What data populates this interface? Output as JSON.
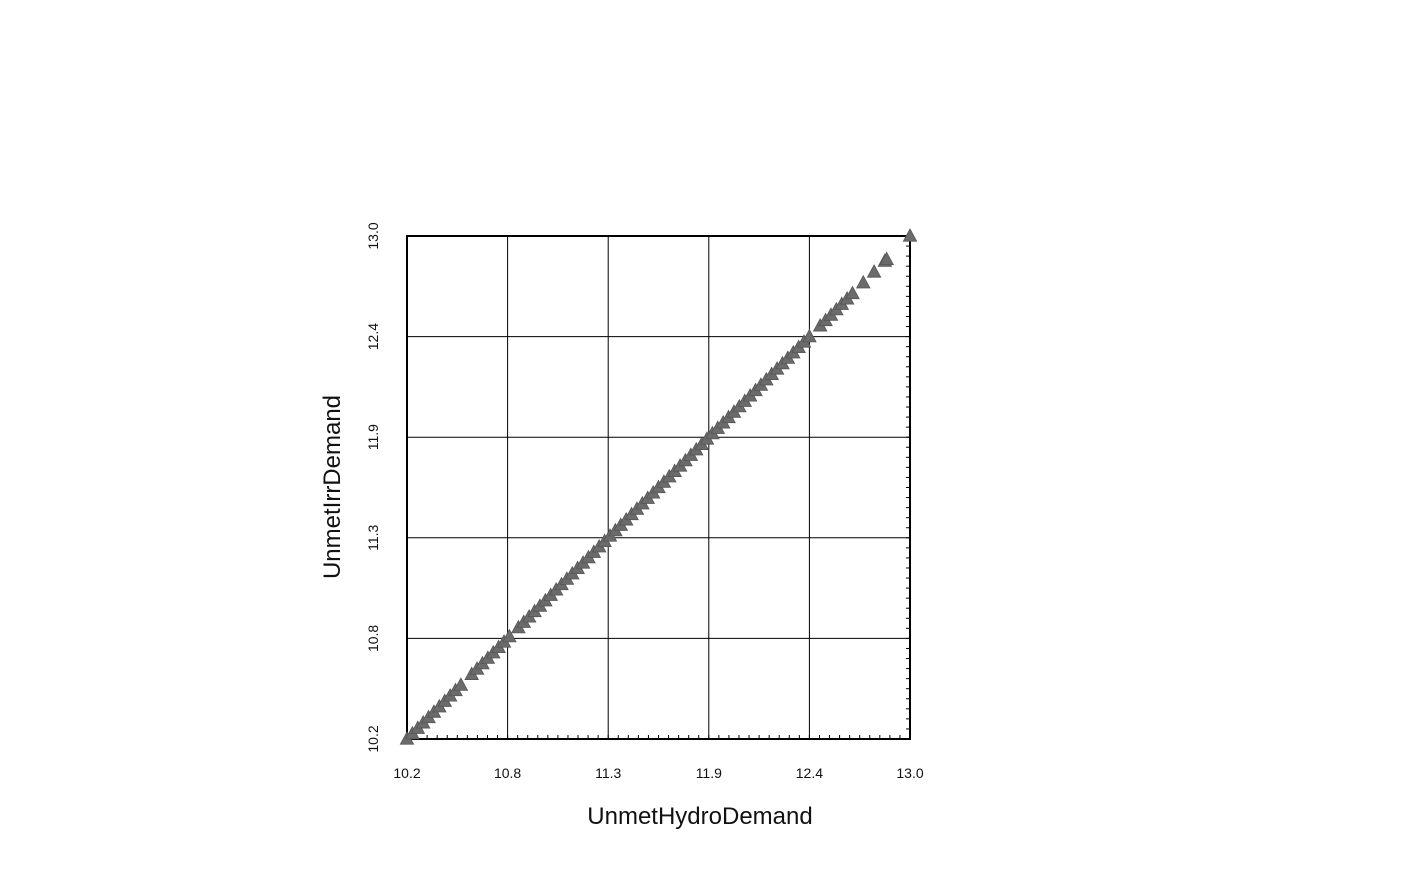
{
  "chart_data": {
    "type": "scatter",
    "title": "",
    "xlabel": "UnmetHydroDemand",
    "ylabel": "UnmetIrrDemand",
    "xlim": [
      10.2,
      13.0
    ],
    "ylim": [
      10.2,
      13.0
    ],
    "x_ticks": [
      "10.2",
      "10.8",
      "11.3",
      "11.9",
      "12.4",
      "13.0"
    ],
    "y_ticks": [
      "10.2",
      "10.8",
      "11.3",
      "11.9",
      "12.4",
      "13.0"
    ],
    "grid": true,
    "marker": "triangle",
    "marker_color": "#6b6b6b",
    "series": [
      {
        "x": [
          10.2,
          10.23,
          10.26,
          10.29,
          10.32,
          10.35,
          10.38,
          10.41,
          10.44,
          10.47,
          10.5,
          10.56,
          10.59,
          10.62,
          10.65,
          10.68,
          10.71,
          10.74,
          10.77,
          10.82,
          10.85,
          10.88,
          10.91,
          10.94,
          10.97,
          11.0,
          11.03,
          11.06,
          11.09,
          11.12,
          11.15,
          11.18,
          11.21,
          11.24,
          11.27,
          11.3,
          11.33,
          11.36,
          11.39,
          11.42,
          11.45,
          11.48,
          11.51,
          11.54,
          11.57,
          11.6,
          11.63,
          11.66,
          11.69,
          11.72,
          11.75,
          11.78,
          11.81,
          11.84,
          11.87,
          11.9,
          11.93,
          11.96,
          11.99,
          12.02,
          12.05,
          12.08,
          12.11,
          12.14,
          12.17,
          12.2,
          12.23,
          12.26,
          12.29,
          12.32,
          12.35,
          12.38,
          12.41,
          12.44,
          12.5,
          12.53,
          12.56,
          12.59,
          12.62,
          12.65,
          12.68,
          12.74,
          12.8,
          12.86,
          12.87,
          13.0
        ],
        "y": [
          10.2,
          10.23,
          10.26,
          10.29,
          10.32,
          10.35,
          10.38,
          10.41,
          10.44,
          10.47,
          10.5,
          10.56,
          10.59,
          10.62,
          10.65,
          10.68,
          10.71,
          10.74,
          10.77,
          10.82,
          10.85,
          10.88,
          10.91,
          10.94,
          10.97,
          11.0,
          11.03,
          11.06,
          11.09,
          11.12,
          11.15,
          11.18,
          11.21,
          11.24,
          11.27,
          11.3,
          11.33,
          11.36,
          11.39,
          11.42,
          11.45,
          11.48,
          11.51,
          11.54,
          11.57,
          11.6,
          11.63,
          11.66,
          11.69,
          11.72,
          11.75,
          11.78,
          11.81,
          11.84,
          11.87,
          11.9,
          11.93,
          11.96,
          11.99,
          12.02,
          12.05,
          12.08,
          12.11,
          12.14,
          12.17,
          12.2,
          12.23,
          12.26,
          12.29,
          12.32,
          12.35,
          12.38,
          12.41,
          12.44,
          12.5,
          12.53,
          12.56,
          12.59,
          12.62,
          12.65,
          12.68,
          12.74,
          12.8,
          12.86,
          12.87,
          13.0
        ]
      }
    ]
  }
}
